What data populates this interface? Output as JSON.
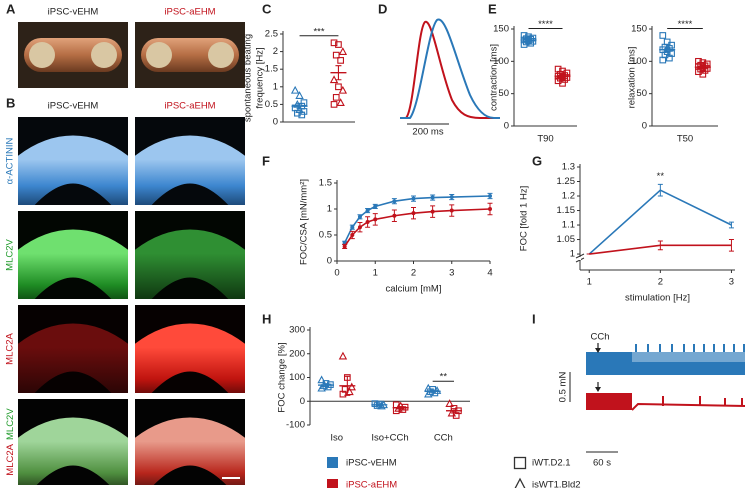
{
  "panels": [
    "A",
    "B",
    "C",
    "D",
    "E",
    "F",
    "G",
    "H",
    "I"
  ],
  "photo_a": {
    "columns": [
      "iPSC-vEHM",
      "iPSC-aEHM"
    ]
  },
  "histology_b": {
    "columns": [
      "iPSC-vEHM",
      "iPSC-aEHM"
    ],
    "rows": [
      [
        "α-ACTININ"
      ],
      [
        "MLC2V"
      ],
      [
        "MLC2A"
      ],
      [
        "MLC2A",
        "MLC2V"
      ]
    ]
  },
  "trace_d": {
    "scale_label": "200 ms"
  },
  "trace_i": {
    "stimulus": "CCh",
    "y_scale": "0.5 mN",
    "x_scale": "60 s"
  },
  "legend": {
    "groups": [
      {
        "name": "iPSC-vEHM",
        "color": "#2a78b8"
      },
      {
        "name": "iPSC-aEHM",
        "color": "#c1121c"
      }
    ],
    "lines": [
      {
        "name": "iWT.D2.1",
        "shape": "square"
      },
      {
        "name": "isWT1.Bld2",
        "shape": "triangle"
      }
    ]
  },
  "chart_data": [
    {
      "type": "dot",
      "ylabel": [
        "spontaneous beating",
        "frequency [Hz]"
      ],
      "categories": [
        null
      ],
      "significance": [
        "***"
      ],
      "ylim": [
        0,
        2.5
      ],
      "yticks": [
        0,
        0.5,
        1,
        1.5,
        2,
        2.5
      ],
      "series": [
        {
          "name": "iPSC-vEHM",
          "color": "#2a78b8",
          "points": [
            [
              0.9,
              0.75,
              0.55,
              0.5,
              0.45,
              0.4,
              0.35,
              0.3,
              0.25,
              0.2
            ]
          ],
          "shapes": [
            [
              "triangle",
              "triangle",
              "square",
              "triangle",
              "square",
              "square",
              "triangle",
              "square",
              "square",
              "square"
            ]
          ],
          "mean": [
            0.45
          ],
          "sem": [
            0.07
          ]
        },
        {
          "name": "iPSC-aEHM",
          "color": "#c1121c",
          "points": [
            [
              2.25,
              2.2,
              2.0,
              1.9,
              1.75,
              1.2,
              1.0,
              0.9,
              0.7,
              0.55,
              0.5
            ]
          ],
          "shapes": [
            [
              "square",
              "square",
              "triangle",
              "square",
              "square",
              "triangle",
              "square",
              "triangle",
              "square",
              "triangle",
              "square"
            ]
          ],
          "mean": [
            1.4
          ],
          "sem": [
            0.2
          ]
        }
      ]
    },
    {
      "type": "dot",
      "ylabel": "contraction [ms]",
      "categories": [
        "T90"
      ],
      "significance": [
        "****"
      ],
      "ylim": [
        0,
        150
      ],
      "yticks": [
        0,
        50,
        100,
        150
      ],
      "series": [
        {
          "name": "iPSC-vEHM",
          "color": "#2a78b8",
          "points": [
            [
              140,
              138,
              136,
              135,
              134,
              133,
              132,
              131,
              130,
              128,
              126
            ]
          ],
          "shapes": [
            [
              "square",
              "square",
              "square",
              "square",
              "square",
              "square",
              "square",
              "square",
              "square",
              "square",
              "square"
            ]
          ],
          "mean": [
            133
          ],
          "sem": [
            1.5
          ]
        },
        {
          "name": "iPSC-aEHM",
          "color": "#c1121c",
          "points": [
            [
              88,
              85,
              82,
              80,
              78,
              77,
              76,
              75,
              74,
              72,
              70,
              66
            ]
          ],
          "shapes": [
            [
              "square",
              "square",
              "square",
              "square",
              "square",
              "square",
              "square",
              "square",
              "square",
              "square",
              "square",
              "square"
            ]
          ],
          "mean": [
            77
          ],
          "sem": [
            2
          ]
        }
      ]
    },
    {
      "type": "dot",
      "ylabel": "relaxation [ms]",
      "categories": [
        "T50"
      ],
      "significance": [
        "****"
      ],
      "ylim": [
        0,
        150
      ],
      "yticks": [
        0,
        50,
        100,
        150
      ],
      "series": [
        {
          "name": "iPSC-vEHM",
          "color": "#2a78b8",
          "points": [
            [
              140,
              130,
              125,
              122,
              120,
              118,
              115,
              112,
              110,
              105,
              102
            ]
          ],
          "shapes": [
            [
              "square",
              "square",
              "square",
              "square",
              "square",
              "square",
              "square",
              "square",
              "square",
              "square",
              "square"
            ]
          ],
          "mean": [
            118
          ],
          "sem": [
            4
          ]
        },
        {
          "name": "iPSC-aEHM",
          "color": "#c1121c",
          "points": [
            [
              100,
              98,
              96,
              94,
              93,
              92,
              90,
              89,
              88,
              86,
              84,
              80
            ]
          ],
          "shapes": [
            [
              "square",
              "square",
              "square",
              "square",
              "square",
              "square",
              "square",
              "square",
              "square",
              "square",
              "square",
              "square"
            ]
          ],
          "mean": [
            91
          ],
          "sem": [
            2
          ]
        }
      ]
    },
    {
      "type": "line",
      "xlabel": "calcium [mM]",
      "ylabel": "FOC/CSA [mN/mm²]",
      "markers": true,
      "x": [
        0.2,
        0.4,
        0.6,
        0.8,
        1,
        1.5,
        2,
        2.5,
        3,
        4
      ],
      "xlim": [
        0,
        4
      ],
      "xticks": [
        0,
        1,
        2,
        3,
        4
      ],
      "ylim": [
        0,
        1.5
      ],
      "yticks": [
        0,
        0.5,
        1,
        1.5
      ],
      "series": [
        {
          "name": "iPSC-vEHM",
          "color": "#2a78b8",
          "values": [
            0.35,
            0.65,
            0.85,
            0.97,
            1.05,
            1.15,
            1.2,
            1.22,
            1.23,
            1.25
          ],
          "errors": [
            0.03,
            0.04,
            0.04,
            0.04,
            0.04,
            0.05,
            0.05,
            0.05,
            0.05,
            0.05
          ]
        },
        {
          "name": "iPSC-aEHM",
          "color": "#c1121c",
          "values": [
            0.28,
            0.5,
            0.65,
            0.75,
            0.8,
            0.87,
            0.92,
            0.95,
            0.97,
            1.0
          ],
          "errors": [
            0.04,
            0.07,
            0.09,
            0.1,
            0.11,
            0.11,
            0.11,
            0.11,
            0.11,
            0.11
          ]
        }
      ]
    },
    {
      "type": "line",
      "xlabel": "stimulation [Hz]",
      "ylabel": "FOC [fold 1 Hz]",
      "axis_break": true,
      "markers": false,
      "x": [
        1,
        2,
        3
      ],
      "annotations": [
        null,
        "**",
        null
      ],
      "xlim": [
        0.87,
        3.05
      ],
      "xticks": [
        1,
        2,
        3
      ],
      "ylim": [
        0.945,
        1.3
      ],
      "yticks": [
        1,
        1.05,
        1.1,
        1.15,
        1.2,
        1.25,
        1.3
      ],
      "series": [
        {
          "name": "iPSC-vEHM",
          "color": "#2a78b8",
          "values": [
            1,
            1.22,
            1.1
          ],
          "errors": [
            0,
            0.02,
            0.01
          ]
        },
        {
          "name": "iPSC-aEHM",
          "color": "#c1121c",
          "values": [
            1,
            1.03,
            1.03
          ],
          "errors": [
            0,
            0.015,
            0.02
          ]
        }
      ]
    },
    {
      "type": "dot",
      "ylabel": "FOC change [%]",
      "categories": [
        "Iso",
        "Iso+CCh",
        "CCh"
      ],
      "significance": [
        null,
        null,
        "**"
      ],
      "ylim": [
        -100,
        300
      ],
      "yticks": [
        -100,
        0,
        100,
        200,
        300
      ],
      "series": [
        {
          "name": "iPSC-vEHM",
          "color": "#2a78b8",
          "points": [
            [
              90,
              75,
              70,
              65,
              60,
              55
            ],
            [
              -10,
              -12,
              -15,
              -18,
              -20
            ],
            [
              55,
              50,
              45,
              40,
              35,
              30
            ]
          ],
          "shapes": [
            [
              "triangle",
              "square",
              "square",
              "triangle",
              "square",
              "triangle"
            ],
            [
              "square",
              "square",
              "triangle",
              "square",
              "triangle"
            ],
            [
              "triangle",
              "square",
              "triangle",
              "square",
              "square",
              "triangle"
            ]
          ],
          "mean": [
            68,
            -15,
            42
          ],
          "sem": [
            6,
            3,
            4
          ]
        },
        {
          "name": "iPSC-aEHM",
          "color": "#c1121c",
          "points": [
            [
              190,
              100,
              60,
              50,
              40,
              30
            ],
            [
              -15,
              -20,
              -25,
              -30,
              -35,
              -40
            ],
            [
              -10,
              -30,
              -40,
              -50,
              -60
            ]
          ],
          "shapes": [
            [
              "triangle",
              "square",
              "triangle",
              "square",
              "triangle",
              "square"
            ],
            [
              "square",
              "triangle",
              "square",
              "triangle",
              "square",
              "square"
            ],
            [
              "triangle",
              "square",
              "square",
              "triangle",
              "square"
            ]
          ],
          "mean": [
            65,
            -27,
            -40
          ],
          "sem": [
            40,
            4,
            9
          ]
        }
      ]
    }
  ]
}
